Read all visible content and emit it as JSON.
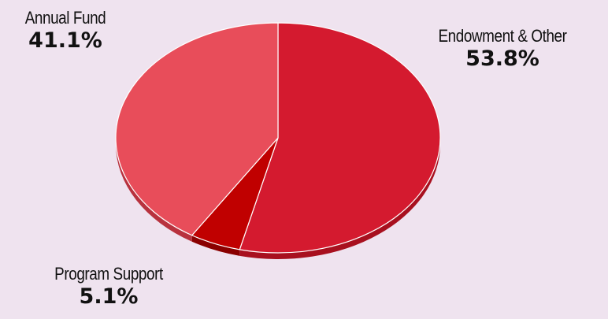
{
  "chart_data": {
    "type": "pie",
    "title": "",
    "slices": [
      {
        "label": "Endowment & Other",
        "value": 53.8,
        "value_label": "53.8%",
        "color": "#d41a2f",
        "side_color": "#a8101f"
      },
      {
        "label": "Program Support",
        "value": 5.1,
        "value_label": "5.1%",
        "color": "#c00000",
        "side_color": "#8a0000"
      },
      {
        "label": "Annual Fund",
        "value": 41.1,
        "value_label": "41.1%",
        "color": "#e84d5a",
        "side_color": "#b8323e"
      }
    ],
    "start_angle_deg": 0,
    "direction": "clockwise",
    "style": "3d-tilted"
  }
}
